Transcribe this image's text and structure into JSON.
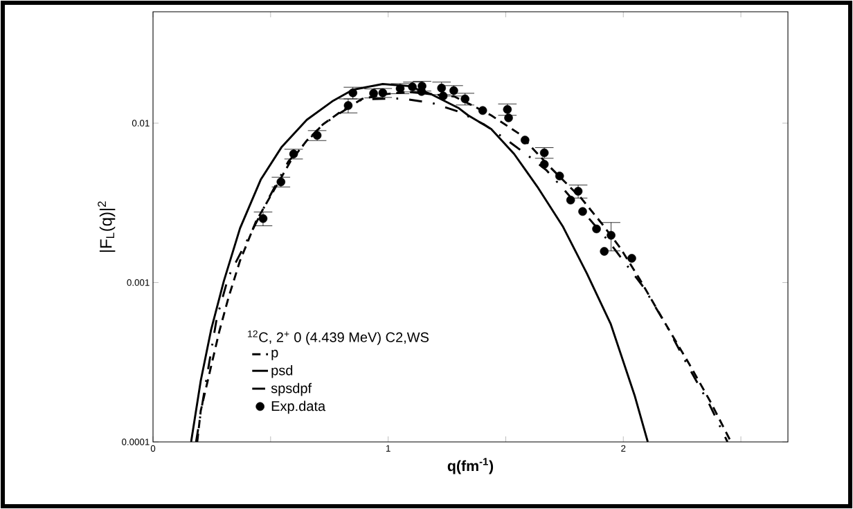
{
  "chart_data": {
    "type": "line",
    "xlabel": "q(fm$^{-1}$)",
    "ylabel": "|F$_{L}$(q)|$^{2}$",
    "legend_title": "$^{12}$C, 2$^{+}$ 0 (4.439 MeV) C2,WS",
    "log": "y",
    "legend": "bottom left",
    "xlim": [
      0,
      2.7
    ],
    "ylim": [
      0.0001,
      0.05
    ],
    "xticks": [
      0,
      {
        "value": 0.5,
        "label": null
      },
      1,
      {
        "value": 1.5,
        "label": null
      },
      2,
      {
        "value": 2.5,
        "label": null
      }
    ],
    "yticks": [
      0.0001,
      0.001,
      0.01
    ],
    "series": [
      {
        "name": "p",
        "color": "#000000",
        "line_style": "dashed",
        "marker": "none",
        "x": [
          0.188,
          0.203,
          0.242,
          0.281,
          0.321,
          0.37,
          0.438,
          0.517,
          0.585,
          0.654,
          0.723,
          0.791,
          0.889,
          0.987,
          1.085,
          1.183,
          1.281,
          1.35,
          1.438,
          1.556,
          1.683,
          1.821,
          1.909,
          1.987,
          2.068,
          2.179,
          2.281,
          2.372,
          2.458
        ],
        "values": [
          0.0001,
          0.000157,
          0.000277,
          0.000488,
          0.000805,
          0.00137,
          0.00242,
          0.00386,
          0.00577,
          0.00778,
          0.00984,
          0.0116,
          0.0142,
          0.0152,
          0.0157,
          0.0152,
          0.0147,
          0.0131,
          0.0112,
          0.0086,
          0.0054,
          0.00338,
          0.00234,
          0.00165,
          0.00106,
          0.000552,
          0.000307,
          0.000177,
          0.0001
        ]
      },
      {
        "name": "psd",
        "color": "#000000",
        "line_style": "solid",
        "marker": "none",
        "x": [
          0.162,
          0.203,
          0.247,
          0.301,
          0.37,
          0.458,
          0.546,
          0.654,
          0.762,
          0.85,
          0.977,
          1.085,
          1.183,
          1.301,
          1.34,
          1.438,
          1.536,
          1.634,
          1.742,
          1.845,
          1.946,
          2.048,
          2.104
        ],
        "values": [
          0.0001,
          0.000242,
          0.000505,
          0.00102,
          0.00219,
          0.00442,
          0.00705,
          0.0105,
          0.0137,
          0.0162,
          0.0176,
          0.0171,
          0.0152,
          0.0124,
          0.0112,
          0.0092,
          0.0064,
          0.004,
          0.00226,
          0.00114,
          0.000552,
          0.000196,
          0.0001
        ]
      },
      {
        "name": "spsdpf",
        "color": "#000000",
        "line_style": "dashdot",
        "marker": "none",
        "x": [
          0.183,
          0.221,
          0.271,
          0.321,
          0.497,
          0.576,
          0.713,
          0.771,
          0.889,
          1.056,
          1.186,
          1.301,
          1.409,
          1.507,
          1.592,
          1.674,
          1.747,
          1.933,
          2.088,
          2.185,
          2.271,
          2.367,
          2.443
        ],
        "values": [
          0.0001,
          0.000219,
          0.000596,
          0.00109,
          0.00349,
          0.00577,
          0.0095,
          0.011,
          0.0141,
          0.0143,
          0.0134,
          0.0118,
          0.0098,
          0.0078,
          0.0063,
          0.00505,
          0.00384,
          0.00185,
          0.000927,
          0.000533,
          0.000307,
          0.000171,
          0.0001
        ]
      },
      {
        "name": "Exp.data",
        "type": "scatter",
        "color": "#000000",
        "marker": "circle",
        "x": [
          0.468,
          0.544,
          0.598,
          0.698,
          0.83,
          0.85,
          0.938,
          0.977,
          1.051,
          1.103,
          1.144,
          1.142,
          1.227,
          1.234,
          1.279,
          1.327,
          1.402,
          1.507,
          1.512,
          1.582,
          1.664,
          1.664,
          1.729,
          1.808,
          1.776,
          1.827,
          1.886,
          1.948,
          1.919,
          2.036
        ],
        "values": [
          0.00252,
          0.00428,
          0.00641,
          0.00838,
          0.0129,
          0.0155,
          0.0154,
          0.0155,
          0.0165,
          0.0169,
          0.0171,
          0.0158,
          0.0166,
          0.0148,
          0.016,
          0.0142,
          0.012,
          0.0122,
          0.0108,
          0.00783,
          0.00652,
          0.00552,
          0.00466,
          0.00374,
          0.00329,
          0.00279,
          0.00217,
          0.00198,
          0.00157,
          0.00142
        ],
        "errors": [
          0.00025,
          0.0003,
          0.00045,
          0.0006,
          0.0013,
          0.0013,
          0.001,
          0.001,
          0.0012,
          0.0012,
          0.0012,
          null,
          0.0015,
          null,
          0.0012,
          0.0012,
          null,
          0.001,
          null,
          null,
          0.0005,
          null,
          null,
          0.00035,
          null,
          null,
          null,
          0.0004,
          null,
          null
        ]
      }
    ]
  }
}
